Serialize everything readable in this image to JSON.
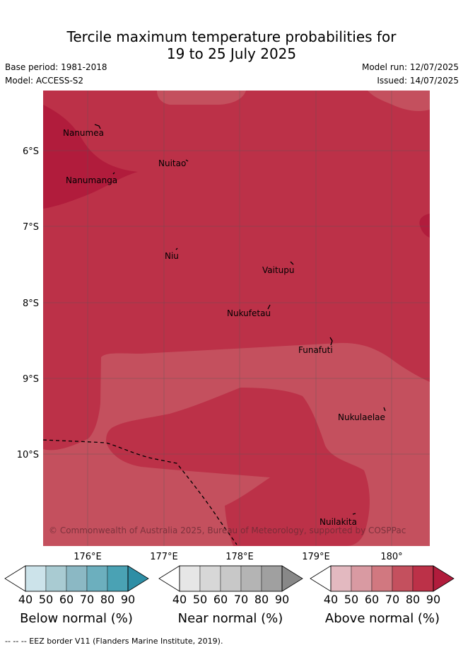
{
  "title_line1": "Tercile maximum temperature probabilities for",
  "title_line2": "19 to 25 July 2025",
  "base_period": "Base period: 1981-2018",
  "model": "Model: ACCESS-S2",
  "model_run": "Model run: 12/07/2025",
  "issued": "Issued: 14/07/2025",
  "map": {
    "lat_labels": [
      "6°S",
      "7°S",
      "8°S",
      "9°S",
      "10°S"
    ],
    "lon_labels": [
      "176°E",
      "177°E",
      "178°E",
      "179°E",
      "180°"
    ],
    "places": [
      {
        "name": "Nanumea"
      },
      {
        "name": "Nuitao"
      },
      {
        "name": "Nanumanga"
      },
      {
        "name": "Niu"
      },
      {
        "name": "Vaitupu"
      },
      {
        "name": "Nukufetau"
      },
      {
        "name": "Funafuti"
      },
      {
        "name": "Nukulaelae"
      },
      {
        "name": "Nuilakita"
      }
    ],
    "copyright": "© Commonwealth of Australia 2025, Bureau of Meteorology, supported by COSPPac",
    "colors": {
      "above_70": "#c4505e",
      "above_80": "#bc3148",
      "above_90": "#b11c3c"
    }
  },
  "legend": {
    "ticks": [
      "40",
      "50",
      "60",
      "70",
      "80",
      "90"
    ],
    "below": {
      "label": "Below normal (%)",
      "colors": [
        "#ffffff",
        "#cce3ea",
        "#a9cbd2",
        "#8bb8c4",
        "#6cafbe",
        "#4aa2b4",
        "#2e8ea5"
      ]
    },
    "near": {
      "label": "Near normal (%)",
      "colors": [
        "#ffffff",
        "#e6e6e6",
        "#d7d7d7",
        "#c8c8c8",
        "#b4b4b4",
        "#a0a0a0",
        "#888888"
      ]
    },
    "above": {
      "label": "Above normal (%)",
      "colors": [
        "#ffffff",
        "#e3b9c0",
        "#d99aa2",
        "#d17880",
        "#c4505e",
        "#bc3148",
        "#b11c3c"
      ]
    }
  },
  "footnote": "--  --  -- EEZ border V11 (Flanders Marine Institute, 2019)."
}
